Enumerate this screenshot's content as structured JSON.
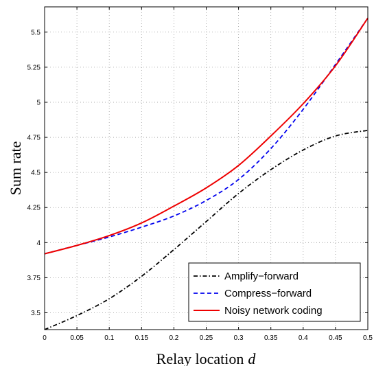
{
  "chart_data": {
    "type": "line",
    "title": "",
    "xlabel": "Relay location",
    "xlabel_var": "d",
    "ylabel": "Sum rate",
    "xlim": [
      0,
      0.5
    ],
    "ylim": [
      3.38,
      5.68
    ],
    "xticks": [
      "0",
      "0.05",
      "0.1",
      "0.15",
      "0.2",
      "0.25",
      "0.3",
      "0.35",
      "0.4",
      "0.45",
      "0.5"
    ],
    "yticks": [
      "3.5",
      "3.75",
      "4",
      "4.25",
      "4.5",
      "4.75",
      "5",
      "5.25",
      "5.5"
    ],
    "grid": true,
    "legend_position": "bottom-right",
    "x": [
      0,
      0.05,
      0.1,
      0.15,
      0.2,
      0.25,
      0.3,
      0.35,
      0.4,
      0.45,
      0.5
    ],
    "series": [
      {
        "name": "Amplify−forward",
        "color": "#000000",
        "style": "dashdot",
        "values": [
          3.38,
          3.48,
          3.6,
          3.76,
          3.95,
          4.15,
          4.35,
          4.52,
          4.66,
          4.76,
          4.8
        ]
      },
      {
        "name": "Compress−forward",
        "color": "#0000ee",
        "style": "dashed",
        "values": [
          3.92,
          3.98,
          4.04,
          4.11,
          4.19,
          4.3,
          4.45,
          4.67,
          4.95,
          5.27,
          5.6
        ]
      },
      {
        "name": "Noisy network coding",
        "color": "#ee0000",
        "style": "solid",
        "values": [
          3.92,
          3.98,
          4.05,
          4.14,
          4.26,
          4.39,
          4.55,
          4.76,
          4.99,
          5.26,
          5.6
        ]
      }
    ]
  }
}
